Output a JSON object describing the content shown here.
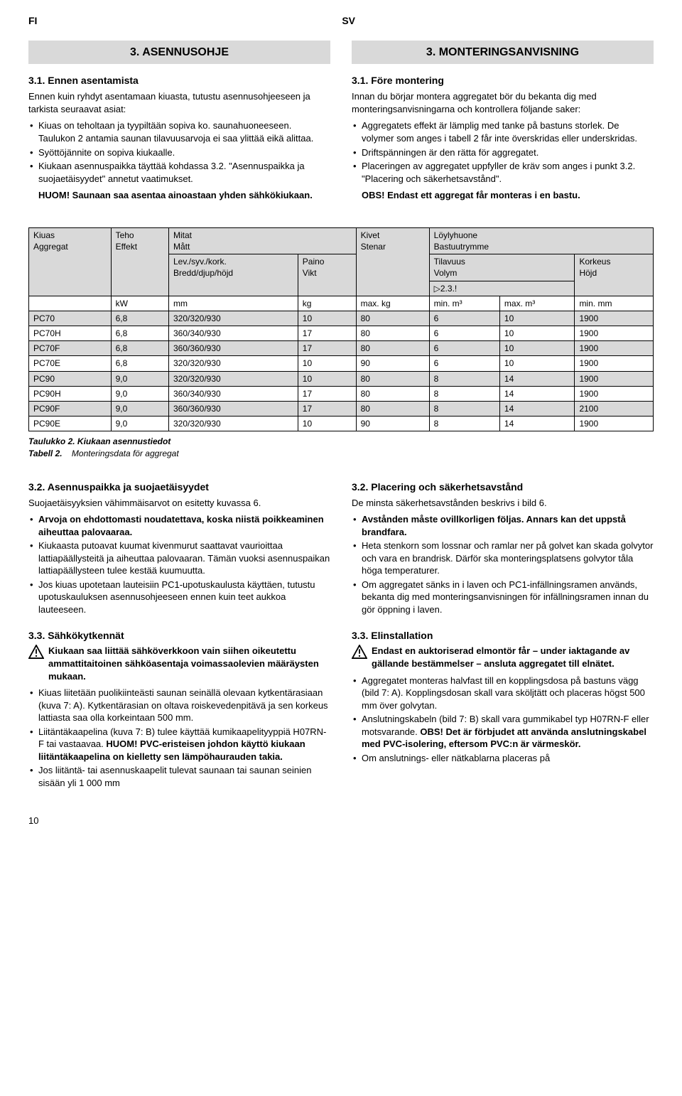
{
  "labels": {
    "fi": "FI",
    "sv": "SV"
  },
  "left": {
    "heading": "3. ASENNUSOHJE",
    "sec31_title": "3.1. Ennen asentamista",
    "sec31_p1": "Ennen kuin ryhdyt asentamaan kiuasta, tutustu asennusohjeeseen ja tarkista seuraavat asiat:",
    "sec31_items": [
      "Kiuas on teholtaan ja tyypiltään sopiva ko. saunahuoneeseen. Taulukon 2 antamia saunan tilavuusarvoja ei saa ylittää eikä alittaa.",
      "Syöttöjännite on sopiva kiukaalle.",
      "Kiukaan asennuspaikka täyttää kohdassa 3.2. \"Asennuspaikka ja suojaetäisyydet\" annetut vaatimukset."
    ],
    "sec31_p2": "HUOM! Saunaan saa asentaa ainoastaan yhden sähkökiukaan.",
    "sec32_title": "3.2. Asennuspaikka ja suojaetäisyydet",
    "sec32_p1": "Suojaetäisyyksien vähimmäisarvot on esitetty kuvassa 6.",
    "sec32_items": [
      "Arvoja on ehdottomasti noudatettava, koska niistä poikkeaminen aiheuttaa palovaaraa.",
      "Kiukaasta putoavat kuumat kivenmurut saattavat vaurioittaa lattiapäällysteitä ja aiheuttaa palovaaran. Tämän vuoksi asennuspaikan lattiapäällysteen tulee kestää kuumuutta.",
      "Jos kiuas upotetaan lauteisiin PC1-upotuskaulusta käyttäen, tutustu upotuskauluksen asennusohjeeseen ennen kuin teet aukkoa lauteeseen."
    ],
    "sec33_title": "3.3. Sähkökytkennät",
    "sec33_warn": "Kiukaan saa liittää sähköverkkoon vain siihen oikeutettu ammattitaitoinen sähköasentaja voimassaolevien määräysten mukaan.",
    "sec33_items": [
      "Kiuas liitetään puolikiinteästi saunan seinällä olevaan kytkentärasiaan (kuva 7: A). Kytkentärasian on oltava roiskevedenpitävä ja sen korkeus lattiasta saa olla korkeintaan 500 mm.",
      "Liitäntäkaapelina (kuva 7: B) tulee käyttää kumikaapelityyppiä H07RN-F tai vastaavaa. HUOM! PVC-eristeisen johdon käyttö kiukaan liitäntäkaapelina on kielletty sen lämpöhaurauden takia.",
      "Jos liitäntä- tai asennuskaapelit tulevat saunaan tai saunan seinien sisään yli 1 000 mm"
    ]
  },
  "right": {
    "heading": "3. MONTERINGSANVISNING",
    "sec31_title": "3.1. Före montering",
    "sec31_p1": "Innan du börjar montera aggregatet bör du bekanta dig med monteringsanvisningarna och kontrollera följande saker:",
    "sec31_items": [
      "Aggregatets effekt är lämplig med tanke på bastuns storlek. De volymer som anges i tabell 2 får inte överskridas eller underskridas.",
      "Driftspänningen är den rätta för aggregatet.",
      "Placeringen av aggregatet uppfyller de kräv som anges i punkt 3.2. \"Placering och säkerhetsavstånd\"."
    ],
    "sec31_p2": "OBS! Endast ett aggregat får monteras i en bastu.",
    "sec32_title": "3.2. Placering och säkerhetsavstånd",
    "sec32_p1": "De minsta säkerhetsavstånden beskrivs i bild 6.",
    "sec32_items": [
      "Avstånden måste ovillkorligen följas. Annars kan det uppstå brandfara.",
      "Heta stenkorn som lossnar och ramlar ner på golvet kan skada golvytor och vara en brandrisk. Därför ska monteringsplatsens golvytor tåla höga temperaturer.",
      "Om aggregatet sänks in i laven och PC1-infällningsramen används, bekanta dig med monteringsanvisningen för infällningsramen innan du gör öppning i laven."
    ],
    "sec33_title": "3.3. Elinstallation",
    "sec33_warn": "Endast en auktoriserad elmontör får – under iaktagande av gällande bestämmelser – ansluta aggregatet till elnätet.",
    "sec33_items": [
      "Aggregatet monteras halvfast till en kopplingsdosa på bastuns vägg (bild 7: A). Kopplingsdosan skall vara sköljtätt och placeras högst 500 mm över golvytan.",
      "Anslutningskabeln (bild 7: B) skall vara gummikabel typ H07RN-F eller motsvarande. OBS! Det är förbjudet att använda anslutningskabel med PVC-isolering, eftersom PVC:n är värmeskör.",
      "Om anslutnings- eller nätkablarna placeras på"
    ]
  },
  "table": {
    "headers": {
      "kiuas": "Kiuas\nAggregat",
      "teho": "Teho\nEffekt",
      "mitat": "Mitat\nMått",
      "dims": "Lev./syv./kork.\nBredd/djup/höjd",
      "paino": "Paino\nVikt",
      "kivet": "Kivet\nStenar",
      "loyly": "Löylyhuone\nBastuutrymme",
      "tilavuus": "Tilavuus\nVolym",
      "korkeus": "Korkeus\nHöjd",
      "note": "▷2.3.!",
      "u_kw": "kW",
      "u_mm": "mm",
      "u_kg": "kg",
      "u_maxkg": "max. kg",
      "u_minm3": "min. m³",
      "u_maxm3": "max. m³",
      "u_minmm": "min. mm"
    },
    "rows": [
      {
        "m": "PC70",
        "kw": "6,8",
        "dim": "320/320/930",
        "w": "10",
        "st": "80",
        "vmin": "6",
        "vmax": "10",
        "h": "1900",
        "shaded": true
      },
      {
        "m": "PC70H",
        "kw": "6,8",
        "dim": "360/340/930",
        "w": "17",
        "st": "80",
        "vmin": "6",
        "vmax": "10",
        "h": "1900",
        "shaded": false
      },
      {
        "m": "PC70F",
        "kw": "6,8",
        "dim": "360/360/930",
        "w": "17",
        "st": "80",
        "vmin": "6",
        "vmax": "10",
        "h": "1900",
        "shaded": true
      },
      {
        "m": "PC70E",
        "kw": "6,8",
        "dim": "320/320/930",
        "w": "10",
        "st": "90",
        "vmin": "6",
        "vmax": "10",
        "h": "1900",
        "shaded": false
      },
      {
        "m": "PC90",
        "kw": "9,0",
        "dim": "320/320/930",
        "w": "10",
        "st": "80",
        "vmin": "8",
        "vmax": "14",
        "h": "1900",
        "shaded": true
      },
      {
        "m": "PC90H",
        "kw": "9,0",
        "dim": "360/340/930",
        "w": "17",
        "st": "80",
        "vmin": "8",
        "vmax": "14",
        "h": "1900",
        "shaded": false
      },
      {
        "m": "PC90F",
        "kw": "9,0",
        "dim": "360/360/930",
        "w": "17",
        "st": "80",
        "vmin": "8",
        "vmax": "14",
        "h": "2100",
        "shaded": true
      },
      {
        "m": "PC90E",
        "kw": "9,0",
        "dim": "320/320/930",
        "w": "10",
        "st": "90",
        "vmin": "8",
        "vmax": "14",
        "h": "1900",
        "shaded": false
      }
    ],
    "caption1": "Taulukko 2. Kiukaan asennustiedot",
    "caption2l": "Tabell 2.",
    "caption2r": "Monteringsdata för aggregat"
  },
  "page_number": "10"
}
